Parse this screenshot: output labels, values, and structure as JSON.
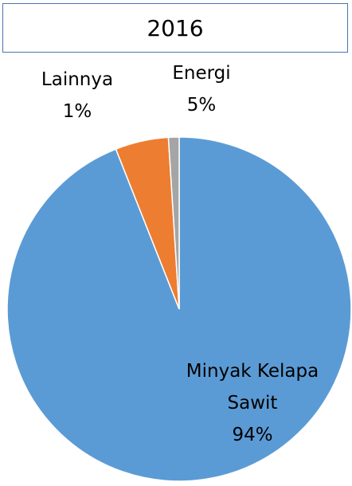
{
  "chart_data": {
    "type": "pie",
    "title": "2016",
    "categories": [
      "Minyak Kelapa Sawit",
      "Energi",
      "Lainnya"
    ],
    "values": [
      94,
      5,
      1
    ],
    "value_labels": [
      "94%",
      "5%",
      "1%"
    ],
    "colors": [
      "#5b9bd5",
      "#ed7d31",
      "#a5a5a5"
    ]
  }
}
